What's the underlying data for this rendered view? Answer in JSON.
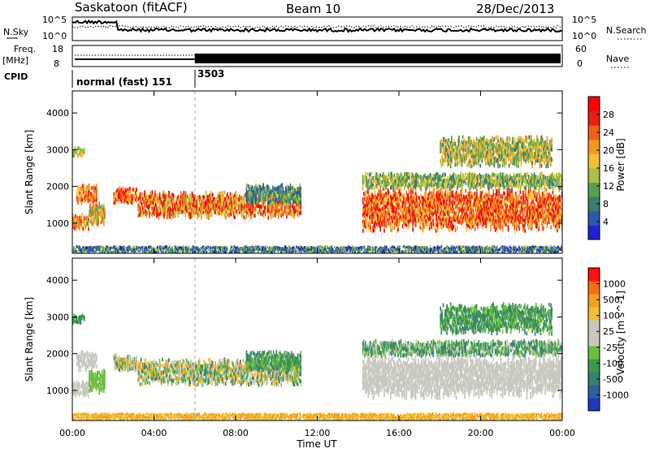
{
  "header": {
    "station": "Saskatoon (fitACF)",
    "beam": "Beam 10",
    "date": "28/Dec/2013"
  },
  "noise_panel": {
    "left_label": "N.Sky",
    "right_label": "N.Search",
    "left_ticks": [
      "10^5",
      "10^0"
    ],
    "right_ticks": [
      "10^5",
      "10^0"
    ]
  },
  "freq_panel": {
    "left_label_1": "Freq.",
    "left_label_2": "[MHz]",
    "right_label": "Nave",
    "left_ticks": [
      "18",
      "8"
    ],
    "right_ticks": [
      "60",
      "0"
    ]
  },
  "cpid": {
    "label": "CPID",
    "first": "normal (fast) 151",
    "second": "3503"
  },
  "chart_data": [
    {
      "type": "heatmap",
      "title": "",
      "xlabel": "Time UT",
      "ylabel": "Slant Range [km]",
      "xlim_hours": [
        0,
        24
      ],
      "ylim_km": [
        180,
        4600
      ],
      "yticks": [
        "1000",
        "2000",
        "3000",
        "4000"
      ],
      "colorbar": {
        "label": "Power [dB]",
        "ticks": [
          "4",
          "8",
          "12",
          "16",
          "20",
          "24",
          "28"
        ],
        "colors": [
          "#1f1fd8",
          "#2d5aa8",
          "#3a7d6a",
          "#58a050",
          "#a8c040",
          "#f0c030",
          "#f09a20",
          "#f06018",
          "#e82010",
          "#ff0000"
        ]
      }
    },
    {
      "type": "heatmap",
      "title": "",
      "xlabel": "Time UT",
      "ylabel": "Slant Range [km]",
      "xlim_hours": [
        0,
        24
      ],
      "ylim_km": [
        180,
        4600
      ],
      "yticks": [
        "1000",
        "2000",
        "3000",
        "4000"
      ],
      "colorbar": {
        "label": "Velocity [m s^-1]",
        "ticks": [
          "1000",
          "500",
          "100",
          "25",
          "-25",
          "-100",
          "-500",
          "-1000"
        ],
        "colors": [
          "#2038c0",
          "#2e5fa0",
          "#3a8070",
          "#3c9a50",
          "#6cc040",
          "#c8c8c0",
          "#c8c8c0",
          "#f0c030",
          "#f0a020",
          "#f07018",
          "#ff1010"
        ]
      }
    }
  ],
  "x_axis": {
    "ticks": [
      "00:00",
      "04:00",
      "08:00",
      "12:00",
      "16:00",
      "20:00",
      "00:00"
    ],
    "label": "Time UT"
  }
}
